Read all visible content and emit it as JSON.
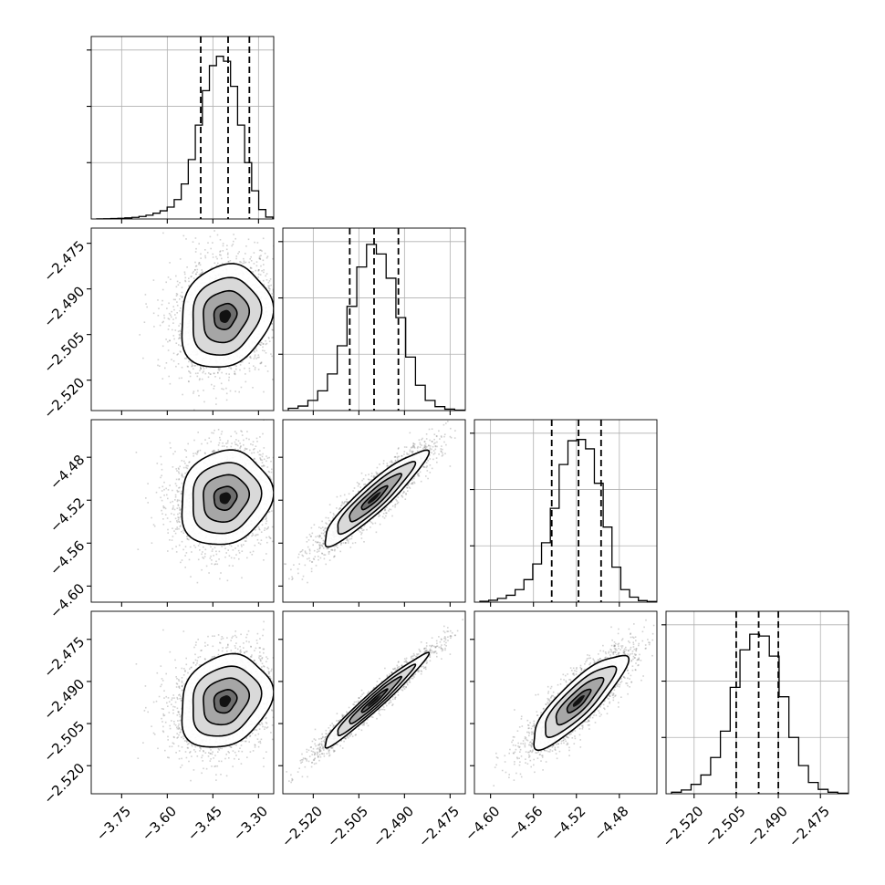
{
  "chart_data": {
    "type": "corner",
    "grid": true,
    "parameters": [
      {
        "range": [
          -3.85,
          -3.25
        ],
        "ticks": [
          -3.75,
          -3.6,
          -3.45,
          -3.3
        ],
        "tick_labels": [
          "−3.75",
          "−3.60",
          "−3.45",
          "−3.30"
        ],
        "quantiles": [
          -3.49,
          -3.4,
          -3.33
        ],
        "hist_peak": 2700,
        "hist_ticks": [
          900,
          1800,
          2700
        ],
        "hist_counts": [
          2,
          4,
          7,
          11,
          17,
          26,
          40,
          60,
          92,
          130,
          190,
          310,
          560,
          950,
          1500,
          2050,
          2450,
          2600,
          2520,
          2120,
          1500,
          900,
          450,
          150,
          30
        ]
      },
      {
        "range": [
          -2.53,
          -2.47
        ],
        "ticks": [
          -2.52,
          -2.505,
          -2.49,
          -2.475
        ],
        "tick_labels": [
          "−2.520",
          "−2.505",
          "−2.490",
          "−2.475"
        ],
        "quantiles": [
          -2.508,
          -2.5,
          -2.492
        ],
        "hist_peak": 3000,
        "hist_ticks": [
          1000,
          2000,
          3000
        ],
        "hist_counts": [
          40,
          80,
          180,
          350,
          650,
          1150,
          1850,
          2550,
          2950,
          2780,
          2350,
          1650,
          950,
          450,
          180,
          70,
          25,
          8
        ]
      },
      {
        "range": [
          -4.615,
          -4.445
        ],
        "ticks": [
          -4.6,
          -4.56,
          -4.52,
          -4.48
        ],
        "tick_labels": [
          "−4.60",
          "−4.56",
          "−4.52",
          "−4.48"
        ],
        "quantiles": [
          -4.543,
          -4.518,
          -4.497
        ],
        "hist_peak": 2700,
        "hist_ticks": [
          900,
          1800,
          2700
        ],
        "hist_counts": [
          15,
          30,
          60,
          110,
          200,
          360,
          610,
          950,
          1500,
          2200,
          2580,
          2600,
          2450,
          1900,
          1200,
          560,
          200,
          80,
          25,
          10
        ]
      },
      {
        "range": [
          -2.53,
          -2.465
        ],
        "ticks": [
          -2.52,
          -2.505,
          -2.49,
          -2.475
        ],
        "tick_labels": [
          "−2.520",
          "−2.505",
          "−2.490",
          "−2.475"
        ],
        "quantiles": [
          -2.505,
          -2.497,
          -2.49
        ],
        "hist_peak": 2700,
        "hist_ticks": [
          900,
          1800,
          2700
        ],
        "hist_counts": [
          25,
          60,
          150,
          300,
          580,
          1000,
          1700,
          2300,
          2550,
          2520,
          2200,
          1550,
          900,
          450,
          180,
          70,
          25,
          8
        ]
      }
    ],
    "pairs": [
      {
        "x": 0,
        "y": 1,
        "mean": [
          -3.41,
          -2.499
        ],
        "sd": [
          0.075,
          0.0085
        ],
        "corr": 0.15,
        "points": 2200
      },
      {
        "x": 0,
        "y": 2,
        "mean": [
          -3.41,
          -4.518
        ],
        "sd": [
          0.075,
          0.022
        ],
        "corr": 0.12,
        "points": 2200
      },
      {
        "x": 1,
        "y": 2,
        "mean": [
          -2.5,
          -4.518
        ],
        "sd": [
          0.0085,
          0.022
        ],
        "corr": 0.92,
        "points": 2200
      },
      {
        "x": 0,
        "y": 3,
        "mean": [
          -3.41,
          -2.497
        ],
        "sd": [
          0.075,
          0.0083
        ],
        "corr": 0.2,
        "points": 2200
      },
      {
        "x": 1,
        "y": 3,
        "mean": [
          -2.5,
          -2.497
        ],
        "sd": [
          0.0085,
          0.0083
        ],
        "corr": 0.97,
        "points": 2200
      },
      {
        "x": 2,
        "y": 3,
        "mean": [
          -4.518,
          -2.497
        ],
        "sd": [
          0.022,
          0.0083
        ],
        "corr": 0.85,
        "points": 2200
      }
    ],
    "contour_levels_sigma": [
      0.5,
      1.0,
      1.5,
      2.0
    ]
  }
}
